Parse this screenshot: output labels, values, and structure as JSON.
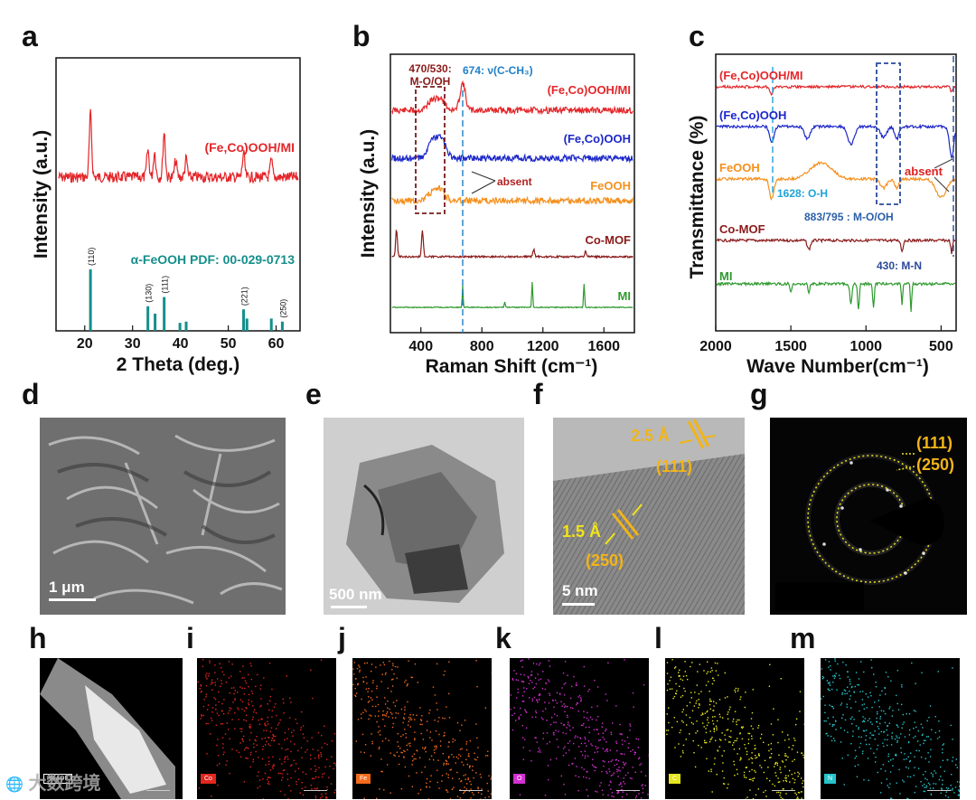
{
  "panel_letters": [
    "a",
    "b",
    "c",
    "d",
    "e",
    "f",
    "g",
    "h",
    "i",
    "j",
    "k",
    "l",
    "m"
  ],
  "chart_data": [
    {
      "type": "line",
      "panel": "a",
      "title": "",
      "xlabel": "2 Theta (deg.)",
      "ylabel": "Intensity (a.u.)",
      "xlim": [
        14,
        65
      ],
      "xticks": [
        20,
        30,
        40,
        50,
        60
      ],
      "series": [
        {
          "name": "(Fe,Co)OOH/MI",
          "color": "#e4262a",
          "peaks_2theta": [
            21.2,
            33.2,
            34.6,
            36.6,
            39.0,
            41.2,
            53.2,
            59.0
          ]
        }
      ],
      "reference": {
        "name": "α-FeOOH PDF: 00-029-0713",
        "color": "#148f8b",
        "positions": [
          21.2,
          33.2,
          34.7,
          36.6,
          39.9,
          41.2,
          53.2,
          53.9,
          59.0,
          61.3
        ],
        "relative_intensity": [
          100,
          40,
          28,
          55,
          13,
          15,
          35,
          20,
          20,
          15
        ],
        "hkl_labels": [
          {
            "pos": 21.2,
            "hkl": "(110)"
          },
          {
            "pos": 33.2,
            "hkl": "(130)"
          },
          {
            "pos": 36.6,
            "hkl": "(111)"
          },
          {
            "pos": 53.2,
            "hkl": "(221)"
          },
          {
            "pos": 61.3,
            "hkl": "(250)"
          }
        ]
      }
    },
    {
      "type": "line",
      "panel": "b",
      "title": "",
      "xlabel": "Raman Shift (cm⁻¹)",
      "ylabel": "Intensity (a.u.)",
      "xlim": [
        200,
        1800
      ],
      "xticks": [
        400,
        800,
        1200,
        1600
      ],
      "series": [
        {
          "name": "(Fe,Co)OOH/MI",
          "color": "#e4262a",
          "peaks": [
            470,
            530,
            674
          ]
        },
        {
          "name": "(Fe,Co)OOH",
          "color": "#1c27c9",
          "peaks": [
            470,
            530
          ]
        },
        {
          "name": "FeOOH",
          "color": "#f5901e",
          "peaks": [
            470,
            530
          ]
        },
        {
          "name": "Co-MOF",
          "color": "#8b1a1a",
          "peaks": [
            240,
            410,
            1140,
            1480
          ]
        },
        {
          "name": "MI",
          "color": "#2e9a2e",
          "peaks": [
            674,
            1130,
            1470
          ]
        }
      ],
      "annotations": [
        "470/530:",
        "M-O/OH",
        "674: ν(C-CH₃)",
        "absent"
      ]
    },
    {
      "type": "line",
      "panel": "c",
      "title": "",
      "xlabel": "Wave Number(cm⁻¹)",
      "ylabel": "Transmittance (%)",
      "xlim": [
        2000,
        400
      ],
      "xticks": [
        2000,
        1500,
        1000,
        500
      ],
      "series": [
        {
          "name": "(Fe,Co)OOH/MI",
          "color": "#e4262a"
        },
        {
          "name": "(Fe,Co)OOH",
          "color": "#1c27c9",
          "dips": [
            1628,
            1390,
            1100,
            883,
            795,
            430
          ]
        },
        {
          "name": "FeOOH",
          "color": "#f5901e",
          "dips": [
            1628,
            883,
            795
          ]
        },
        {
          "name": "Co-MOF",
          "color": "#8b1a1a",
          "dips": [
            1380,
            760,
            430
          ]
        },
        {
          "name": "MI",
          "color": "#2e9a2e",
          "dips": [
            1500,
            1100,
            1050,
            950,
            760,
            700
          ]
        }
      ],
      "annotations": [
        "absent",
        "1628: O-H",
        "883/795 : M-O/OH",
        "430: M-N"
      ]
    }
  ],
  "micrographs": {
    "d": {
      "scale": "1 μm"
    },
    "e": {
      "scale": "500 nm"
    },
    "f": {
      "scale": "5 nm",
      "d1": "2.5 Å",
      "hkl1": "(111)",
      "d2": "1.5 Å",
      "hkl2": "(250)"
    },
    "g": {
      "ring1": "(111)",
      "ring2": "(250)"
    }
  },
  "eds_maps": [
    {
      "panel": "h",
      "label": "HAADF",
      "color": "#dddddd"
    },
    {
      "panel": "i",
      "label": "Co",
      "color": "#e3261e"
    },
    {
      "panel": "j",
      "label": "Fe",
      "color": "#f26a1b"
    },
    {
      "panel": "k",
      "label": "O",
      "color": "#d42fd2"
    },
    {
      "panel": "l",
      "label": "C",
      "color": "#e6e61e"
    },
    {
      "panel": "m",
      "label": "N",
      "color": "#26c4cc"
    }
  ],
  "watermark": "大数跨境"
}
